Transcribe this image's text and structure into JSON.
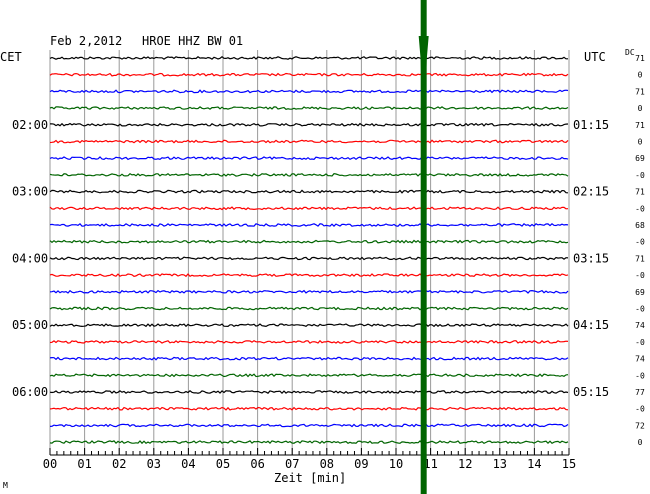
{
  "chart_data": {
    "type": "line",
    "title_date": "Feb 2,2012",
    "title_station": "HROE HHZ BW 01",
    "left_axis_label": "CET",
    "right_axis_label": "UTC",
    "offset_label": "DC",
    "xlabel": "Zeit [min]",
    "xlim": [
      0,
      15
    ],
    "x_ticks": [
      "00",
      "01",
      "02",
      "03",
      "04",
      "05",
      "06",
      "07",
      "08",
      "09",
      "10",
      "11",
      "12",
      "13",
      "14",
      "15"
    ],
    "trace_count": 24,
    "trace_colors": [
      "#000000",
      "#ff0000",
      "#0000ff",
      "#006400"
    ],
    "hour_labels": [
      {
        "trace": 4,
        "cet": "02:00",
        "utc": "01:15"
      },
      {
        "trace": 8,
        "cet": "03:00",
        "utc": "02:15"
      },
      {
        "trace": 12,
        "cet": "04:00",
        "utc": "03:15"
      },
      {
        "trace": 16,
        "cet": "05:00",
        "utc": "04:15"
      },
      {
        "trace": 20,
        "cet": "06:00",
        "utc": "05:15"
      }
    ],
    "dc_values": [
      "71",
      "0",
      "71",
      "0",
      "71",
      "0",
      "69",
      "-0",
      "71",
      "-0",
      "68",
      "-0",
      "71",
      "-0",
      "69",
      "-0",
      "74",
      "-0",
      "74",
      "-0",
      "77",
      "-0",
      "72",
      "0"
    ],
    "event": {
      "minute": 10.8,
      "color": "#006400"
    },
    "footer_mark": "M"
  }
}
